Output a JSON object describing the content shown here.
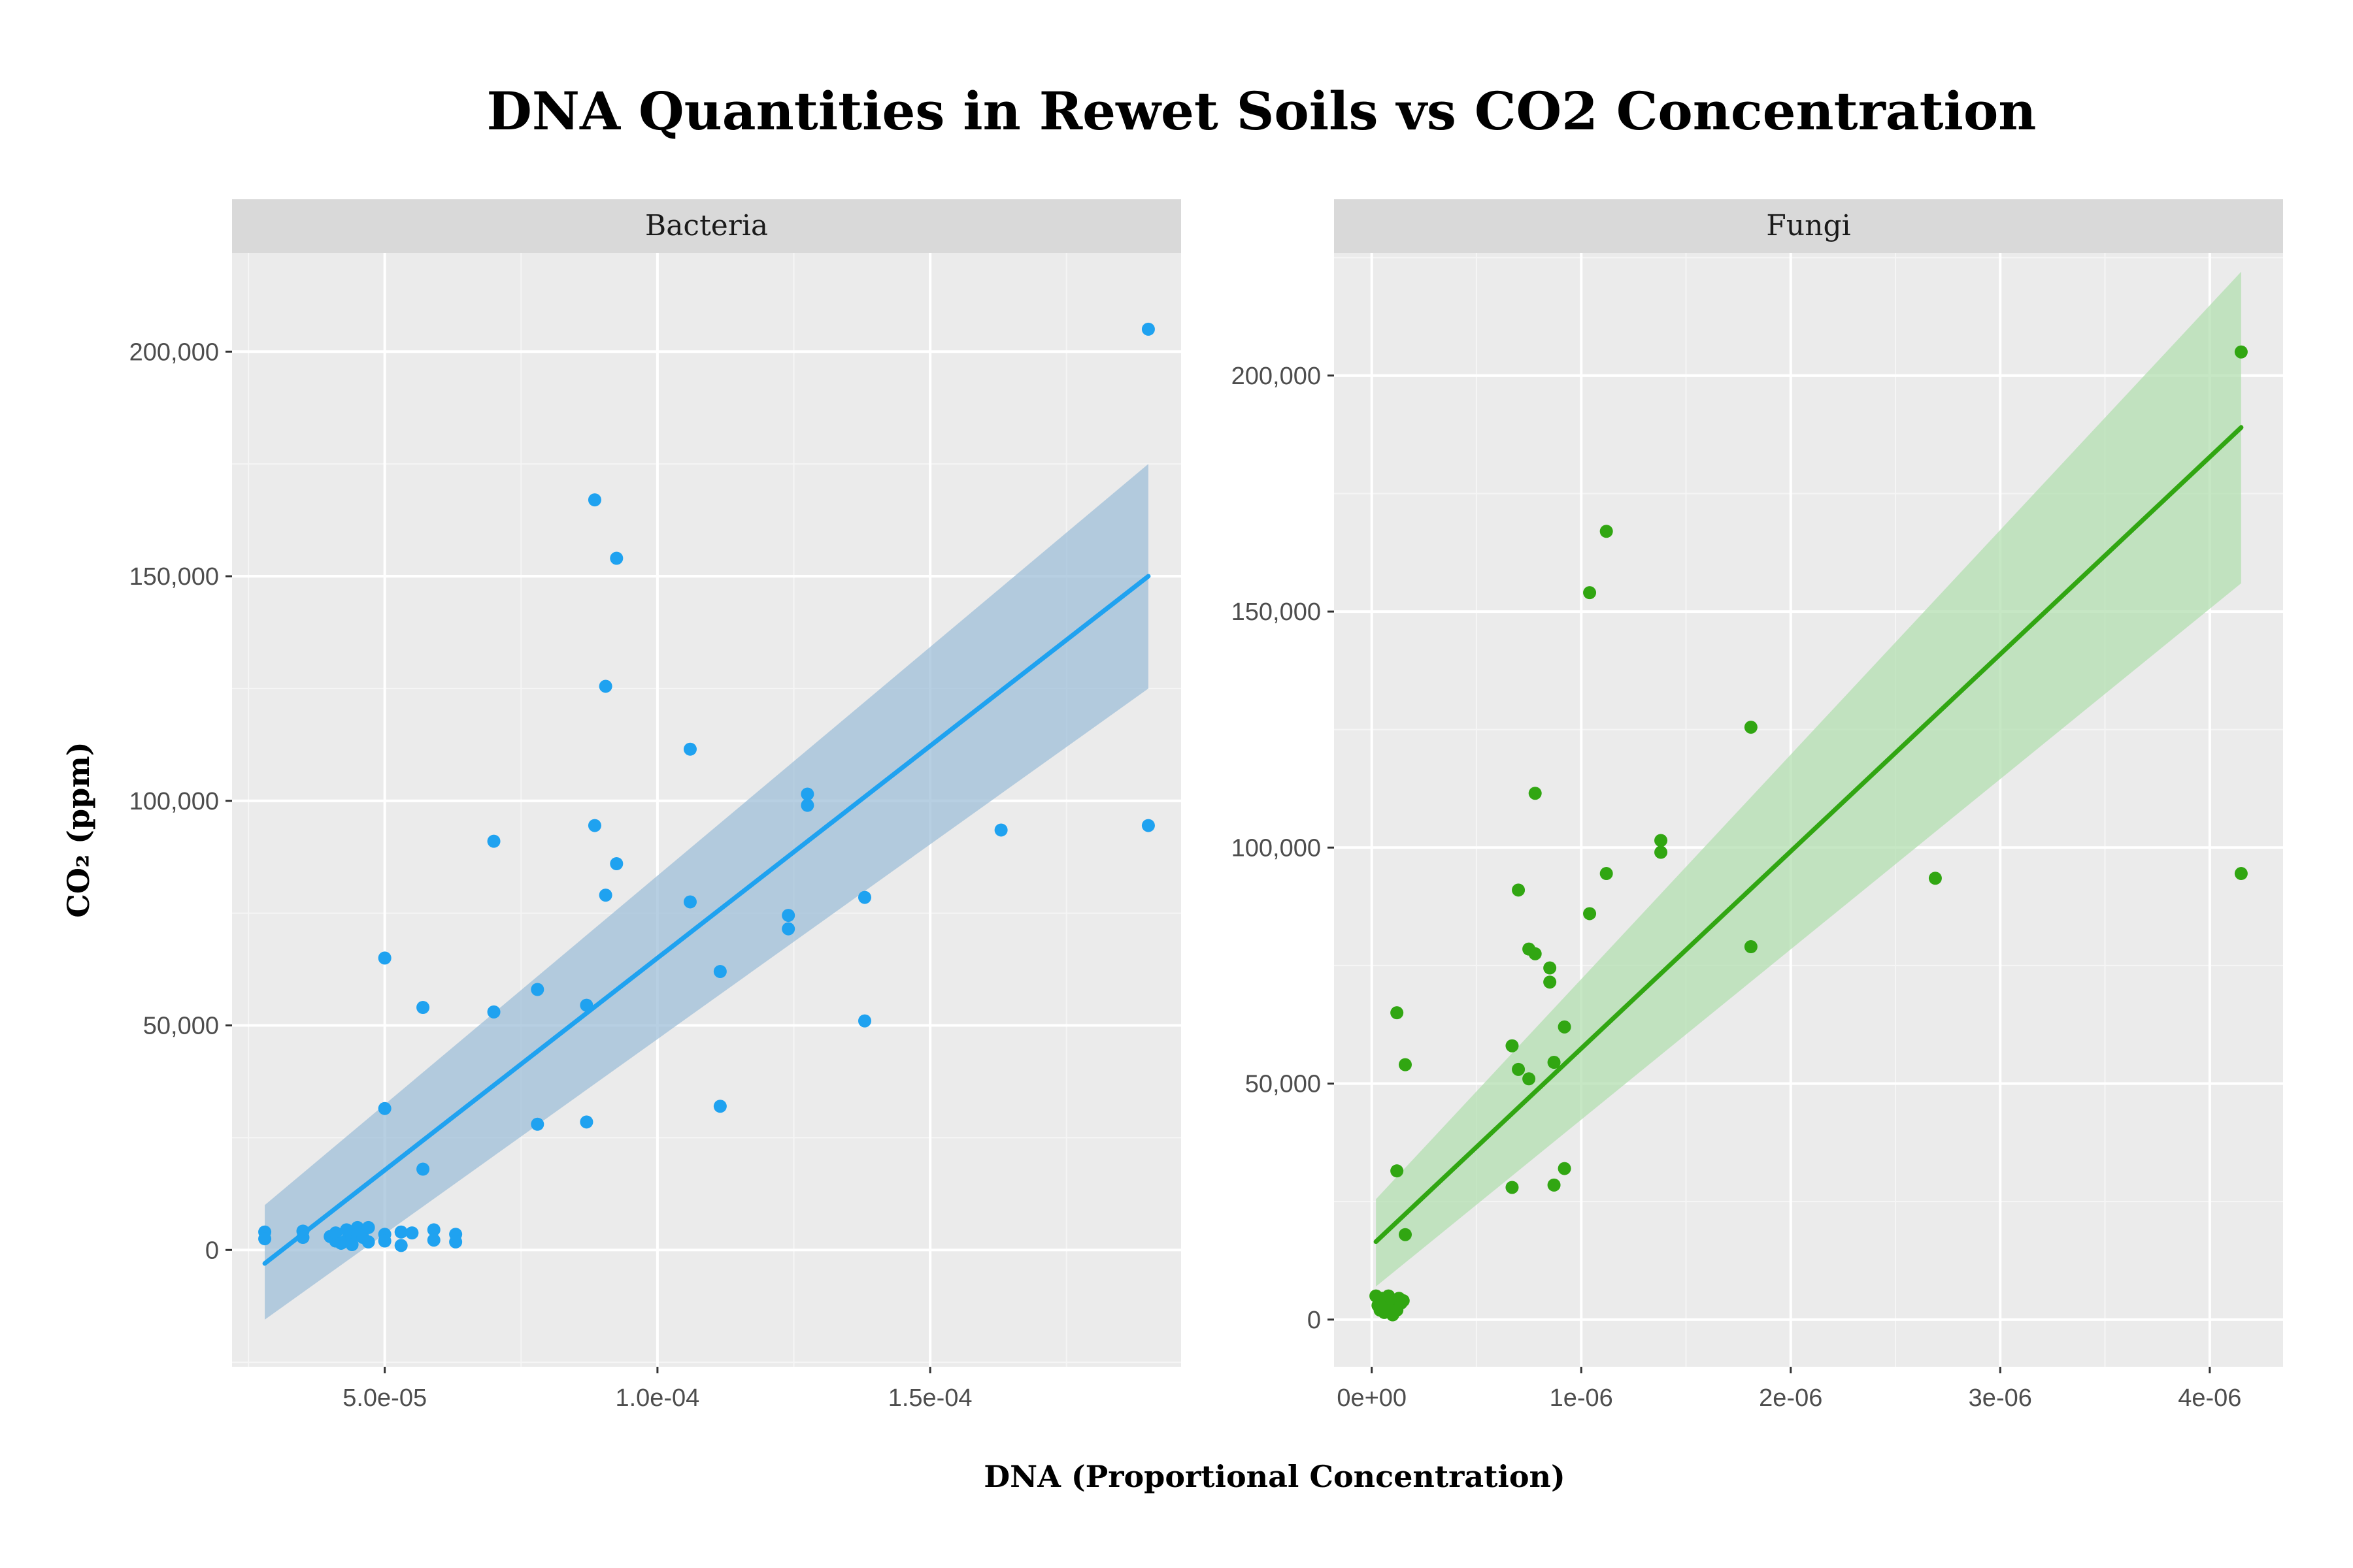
{
  "title": "DNA Quantities in Rewet Soils vs CO2 Concentration",
  "xlabel": "DNA (Proportional Concentration)",
  "ylabel": "CO₂ (ppm)",
  "chart_data": [
    {
      "type": "scatter",
      "panel": "Bacteria",
      "color": "#1fa2f0",
      "band_color": "#9fbfd8",
      "xlim": [
        2.2e-05,
        0.000196
      ],
      "ylim": [
        -26000,
        222000
      ],
      "xticks": [
        5e-05,
        0.0001,
        0.00015
      ],
      "xtick_labels": [
        "5.0e-05",
        "1.0e-04",
        "1.5e-04"
      ],
      "yticks": [
        0,
        50000,
        100000,
        150000,
        200000
      ],
      "ytick_labels": [
        "0",
        "50,000",
        "100,000",
        "150,000",
        "200,000"
      ],
      "points": [
        [
          2.8e-05,
          4000
        ],
        [
          2.8e-05,
          2500
        ],
        [
          3.5e-05,
          4200
        ],
        [
          3.5e-05,
          2800
        ],
        [
          4e-05,
          3000
        ],
        [
          4.1e-05,
          2000
        ],
        [
          4.1e-05,
          3800
        ],
        [
          4.2e-05,
          1500
        ],
        [
          4.3e-05,
          4500
        ],
        [
          4.3e-05,
          2200
        ],
        [
          4.4e-05,
          3000
        ],
        [
          4.4e-05,
          1200
        ],
        [
          4.5e-05,
          5000
        ],
        [
          4.5e-05,
          3500
        ],
        [
          4.6e-05,
          2800
        ],
        [
          4.7e-05,
          5000
        ],
        [
          4.7e-05,
          1800
        ],
        [
          5e-05,
          65000
        ],
        [
          5e-05,
          31500
        ],
        [
          5e-05,
          3500
        ],
        [
          5e-05,
          2000
        ],
        [
          5.3e-05,
          4000
        ],
        [
          5.3e-05,
          1000
        ],
        [
          5.5e-05,
          3800
        ],
        [
          5.7e-05,
          54000
        ],
        [
          5.7e-05,
          18000
        ],
        [
          5.9e-05,
          4500
        ],
        [
          5.9e-05,
          2200
        ],
        [
          6.3e-05,
          3500
        ],
        [
          6.3e-05,
          1800
        ],
        [
          7e-05,
          91000
        ],
        [
          7e-05,
          53000
        ],
        [
          7.8e-05,
          58000
        ],
        [
          7.8e-05,
          28000
        ],
        [
          8.7e-05,
          54500
        ],
        [
          8.7e-05,
          28500
        ],
        [
          8.85e-05,
          167000
        ],
        [
          8.85e-05,
          94500
        ],
        [
          9.05e-05,
          125500
        ],
        [
          9.05e-05,
          79000
        ],
        [
          9.25e-05,
          154000
        ],
        [
          9.25e-05,
          86000
        ],
        [
          0.000106,
          111500
        ],
        [
          0.000106,
          77500
        ],
        [
          0.0001115,
          62000
        ],
        [
          0.0001115,
          32000
        ],
        [
          0.000124,
          74500
        ],
        [
          0.000124,
          71500
        ],
        [
          0.0001275,
          101500
        ],
        [
          0.0001275,
          99000
        ],
        [
          0.000138,
          78500
        ],
        [
          0.000138,
          51000
        ],
        [
          0.000163,
          93500
        ],
        [
          0.00019,
          205000
        ],
        [
          0.00019,
          94500
        ]
      ],
      "fit": {
        "x": [
          2.8e-05,
          0.00019
        ],
        "y": [
          -3000,
          150000
        ],
        "lower": [
          -15500,
          125000
        ],
        "upper": [
          10000,
          175000
        ]
      }
    },
    {
      "type": "scatter",
      "panel": "Fungi",
      "color": "#31a612",
      "band_color": "#b3dfb0",
      "xlim": [
        -1.8e-07,
        4.35e-06
      ],
      "ylim": [
        -10000,
        226000
      ],
      "xticks": [
        0,
        1e-06,
        2e-06,
        3e-06,
        4e-06
      ],
      "xtick_labels": [
        "0e+00",
        "1e-06",
        "2e-06",
        "3e-06",
        "4e-06"
      ],
      "yticks": [
        0,
        50000,
        100000,
        150000,
        200000
      ],
      "ytick_labels": [
        "0",
        "50,000",
        "100,000",
        "150,000",
        "200,000"
      ],
      "points": [
        [
          2e-08,
          5000
        ],
        [
          3e-08,
          3000
        ],
        [
          4e-08,
          2000
        ],
        [
          5e-08,
          4500
        ],
        [
          6e-08,
          1500
        ],
        [
          7e-08,
          3500
        ],
        [
          8e-08,
          5000
        ],
        [
          9e-08,
          2500
        ],
        [
          1e-07,
          4000
        ],
        [
          1e-07,
          1000
        ],
        [
          1.1e-07,
          3000
        ],
        [
          1.2e-07,
          2000
        ],
        [
          1.3e-07,
          4500
        ],
        [
          1.4e-07,
          3500
        ],
        [
          1.5e-07,
          4000
        ],
        [
          1.2e-07,
          65000
        ],
        [
          1.2e-07,
          31500
        ],
        [
          1.6e-07,
          54000
        ],
        [
          1.6e-07,
          18000
        ],
        [
          6.7e-07,
          58000
        ],
        [
          6.7e-07,
          28000
        ],
        [
          7e-07,
          91000
        ],
        [
          7e-07,
          53000
        ],
        [
          7.5e-07,
          78500
        ],
        [
          7.5e-07,
          51000
        ],
        [
          7.8e-07,
          111500
        ],
        [
          7.8e-07,
          77500
        ],
        [
          8.5e-07,
          74500
        ],
        [
          8.5e-07,
          71500
        ],
        [
          8.7e-07,
          54500
        ],
        [
          8.7e-07,
          28500
        ],
        [
          9.2e-07,
          62000
        ],
        [
          9.2e-07,
          32000
        ],
        [
          1.04e-06,
          154000
        ],
        [
          1.04e-06,
          86000
        ],
        [
          1.12e-06,
          167000
        ],
        [
          1.12e-06,
          94500
        ],
        [
          1.38e-06,
          101500
        ],
        [
          1.38e-06,
          99000
        ],
        [
          1.81e-06,
          125500
        ],
        [
          1.81e-06,
          79000
        ],
        [
          2.69e-06,
          93500
        ],
        [
          4.15e-06,
          205000
        ],
        [
          4.15e-06,
          94500
        ]
      ],
      "fit": {
        "x": [
          2e-08,
          4.15e-06
        ],
        "y": [
          16500,
          189000
        ],
        "lower": [
          7000,
          156000
        ],
        "upper": [
          25500,
          222000
        ]
      }
    }
  ]
}
